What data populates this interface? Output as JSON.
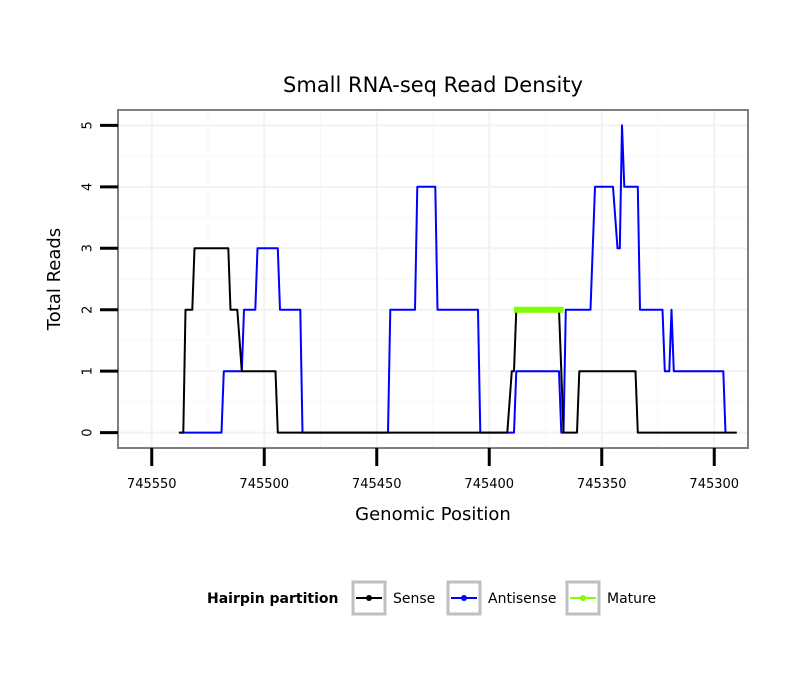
{
  "chart_data": {
    "type": "line",
    "title": "Small RNA-seq Read Density",
    "xlabel": "Genomic Position",
    "ylabel": "Total Reads",
    "xlim": [
      745565,
      745285
    ],
    "ylim": [
      -0.25,
      5.25
    ],
    "x_reversed": true,
    "xticks": [
      745550,
      745500,
      745450,
      745400,
      745350,
      745300
    ],
    "xtick_labels": [
      "745550",
      "745500",
      "745450",
      "745400",
      "745350",
      "745300"
    ],
    "yticks": [
      0,
      1,
      2,
      3,
      4,
      5
    ],
    "ytick_labels": [
      "0",
      "1",
      "2",
      "3",
      "4",
      "5"
    ],
    "grid": true,
    "legend": {
      "title": "Hairpin partition",
      "position": "bottom",
      "entries": [
        "Sense",
        "Antisense",
        "Mature"
      ]
    },
    "series": [
      {
        "name": "Sense",
        "color": "#000000",
        "x": [
          745538,
          745536,
          745535,
          745532,
          745531,
          745516,
          745515,
          745512,
          745510,
          745495,
          745494,
          745392,
          745390,
          745389,
          745388,
          745369,
          745368,
          745367,
          745366,
          745361,
          745360,
          745335,
          745334,
          745290
        ],
        "values": [
          0,
          0,
          2,
          2,
          3,
          3,
          2,
          2,
          1,
          1,
          0,
          0,
          1,
          1,
          2,
          2,
          1,
          0,
          0,
          0,
          1,
          1,
          0,
          0
        ]
      },
      {
        "name": "Antisense",
        "color": "#0000ff",
        "x": [
          745537,
          745519,
          745518,
          745510,
          745509,
          745504,
          745503,
          745494,
          745493,
          745484,
          745483,
          745445,
          745444,
          745433,
          745432,
          745424,
          745423,
          745405,
          745404,
          745389,
          745388,
          745369,
          745368,
          745367,
          745366,
          745355,
          745353,
          745348,
          745345,
          745343,
          745342,
          745341,
          745340,
          745339,
          745334,
          745333,
          745323,
          745322,
          745320,
          745319,
          745318,
          745317,
          745296,
          745295
        ],
        "values": [
          0,
          0,
          1,
          1,
          2,
          2,
          3,
          3,
          2,
          2,
          0,
          0,
          2,
          2,
          4,
          4,
          2,
          2,
          0,
          0,
          1,
          1,
          0,
          0,
          2,
          2,
          4,
          4,
          4,
          3,
          3,
          5,
          4,
          4,
          4,
          2,
          2,
          1,
          1,
          2,
          1,
          1,
          1,
          0
        ]
      },
      {
        "name": "Mature",
        "color": "#7fff00",
        "x": [
          745389,
          745367
        ],
        "values": [
          2,
          2
        ]
      }
    ]
  }
}
